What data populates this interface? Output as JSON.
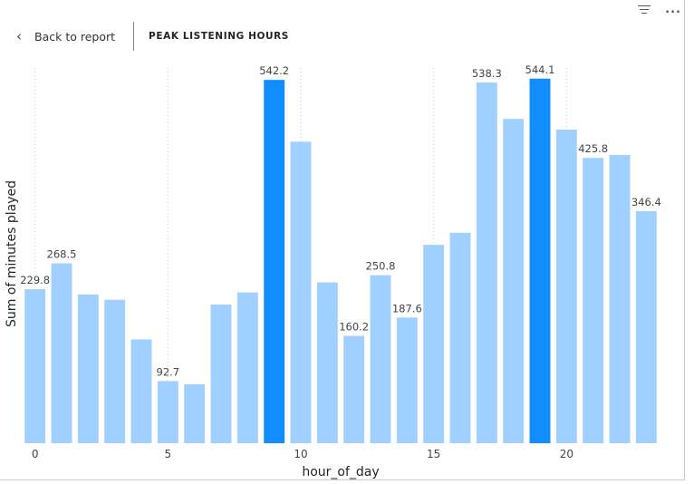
{
  "toolbar": {
    "filter_icon": "filter-icon",
    "more_icon": "more-options-icon",
    "more_label": "..."
  },
  "header": {
    "back_label": "Back to report",
    "back_icon": "chevron-left-icon",
    "title": "PEAK LISTENING HOURS"
  },
  "colors": {
    "bar": "#9fd0ff",
    "bar_highlight": "#118dff",
    "text": "#252423",
    "label": "#444444",
    "grid": "#c8c8c8"
  },
  "chart_data": {
    "type": "bar",
    "xlabel": "hour_of_day",
    "ylabel": "Sum of minutes played",
    "x": [
      0,
      1,
      2,
      3,
      4,
      5,
      6,
      7,
      8,
      9,
      10,
      11,
      12,
      13,
      14,
      15,
      16,
      17,
      18,
      19,
      20,
      21,
      22,
      23
    ],
    "values": [
      229.8,
      268.5,
      222,
      214,
      155,
      92.7,
      88,
      207,
      225,
      542.2,
      450,
      240,
      160.2,
      250.8,
      187.6,
      296,
      314,
      538.3,
      484,
      544.1,
      468,
      425.8,
      430,
      346.4
    ],
    "labeled_indices": [
      0,
      1,
      5,
      9,
      12,
      13,
      14,
      17,
      19,
      21,
      23
    ],
    "highlighted_indices": [
      9,
      19
    ],
    "x_ticks": [
      0,
      5,
      10,
      15,
      20
    ],
    "x_tick_labels": [
      "0",
      "5",
      "10",
      "15",
      "20"
    ],
    "ylim": [
      0,
      560
    ],
    "vertical_grid": true
  }
}
